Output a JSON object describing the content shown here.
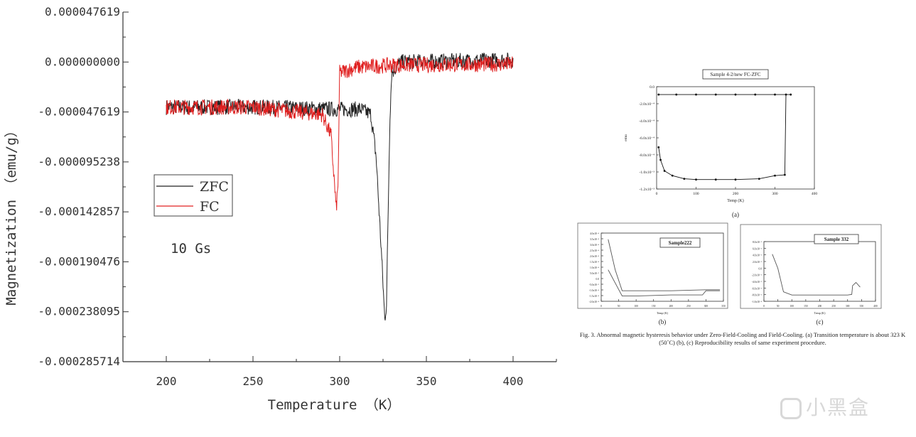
{
  "chart_data": [
    {
      "type": "line",
      "xlabel": "Temperature （K）",
      "ylabel": "Magnetization （emu/g）",
      "xlim": [
        175,
        425
      ],
      "ylim": [
        -0.000285714,
        4.7619e-05
      ],
      "x_ticks": [
        "200",
        "250",
        "300",
        "350",
        "400"
      ],
      "y_ticks": [
        "0.000047619",
        "0.000000000",
        "-0.000047619",
        "-0.000095238",
        "-0.000142857",
        "-0.000190476",
        "-0.000238095",
        "-0.000285714"
      ],
      "legend_position": "left-middle",
      "annotation": "10 Gs",
      "series": [
        {
          "name": "ZFC",
          "color": "#222222",
          "noise": 7.5e-06,
          "points": [
            [
              200,
              -4.3e-05
            ],
            [
              250,
              -4.3e-05
            ],
            [
              300,
              -4.5e-05
            ],
            [
              312,
              -4.5e-05
            ],
            [
              318,
              -5e-05
            ],
            [
              321,
              -9e-05
            ],
            [
              324,
              -0.00018
            ],
            [
              326,
              -0.000245
            ],
            [
              327,
              -0.00023
            ],
            [
              329,
              -5e-05
            ],
            [
              330,
              -1e-05
            ],
            [
              335,
              0.0
            ],
            [
              400,
              2e-06
            ]
          ]
        },
        {
          "name": "FC",
          "color": "#e02020",
          "noise": 7.5e-06,
          "points": [
            [
              200,
              -4.3e-05
            ],
            [
              250,
              -4.3e-05
            ],
            [
              290,
              -5e-05
            ],
            [
              295,
              -7e-05
            ],
            [
              298,
              -0.00014
            ],
            [
              299,
              -0.00012
            ],
            [
              300,
              -1e-05
            ],
            [
              310,
              -5e-06
            ],
            [
              330,
              -3e-06
            ],
            [
              400,
              -2e-06
            ]
          ]
        }
      ]
    },
    {
      "type": "line",
      "title": "Sample 4-2/new FC-ZFC",
      "xlabel": "Temp (K)",
      "ylabel": "emu",
      "xlim": [
        0,
        400
      ],
      "ylim": [
        -0.0012,
        0.0001
      ],
      "x_ticks": [
        "0",
        "100",
        "200",
        "300",
        "400"
      ],
      "y_ticks": [
        "0.0",
        "-2.0x10⁻⁴",
        "-4.0x10⁻⁴",
        "-6.0x10⁻⁴",
        "-8.0x10⁻⁴",
        "-1.0x10⁻³",
        "-1.2x10⁻³"
      ],
      "sublabel": "(a)",
      "series": [
        {
          "color": "#111111",
          "points": [
            [
              5,
              0.0
            ],
            [
              50,
              0.0
            ],
            [
              100,
              0.0
            ],
            [
              150,
              0.0
            ],
            [
              200,
              0.0
            ],
            [
              250,
              0.0
            ],
            [
              300,
              0.0
            ],
            [
              340,
              0.0
            ]
          ]
        },
        {
          "color": "#111111",
          "points": [
            [
              5,
              -0.00067
            ],
            [
              10,
              -0.00083
            ],
            [
              20,
              -0.00097
            ],
            [
              40,
              -0.00103
            ],
            [
              70,
              -0.00107
            ],
            [
              100,
              -0.00108
            ],
            [
              150,
              -0.00108
            ],
            [
              200,
              -0.00108
            ],
            [
              260,
              -0.00107
            ],
            [
              300,
              -0.00103
            ],
            [
              325,
              -0.00102
            ],
            [
              328,
              0.0
            ]
          ]
        }
      ]
    },
    {
      "type": "line",
      "title": "Sample222",
      "xlabel": "Temp (K)",
      "sublabel": "(b)",
      "xlim": [
        0,
        350
      ],
      "x_ticks": [
        "0",
        "50",
        "100",
        "150",
        "200",
        "250",
        "300",
        "350"
      ],
      "y_ticks": [
        "4.0x10⁻⁴",
        "3.5x10⁻⁴",
        "3.0x10⁻⁴",
        "2.5x10⁻⁴",
        "2.0x10⁻⁴",
        "1.5x10⁻⁴",
        "1.0x10⁻⁴",
        "5.0x10⁻⁵",
        "0.0",
        "-5.0x10⁻⁵",
        "-1.0x10⁻⁴",
        "-1.5x10⁻⁴",
        "-2.0x10⁻⁴"
      ],
      "ylim": [
        -0.0002,
        0.00045
      ],
      "series": [
        {
          "color": "#555555",
          "points": [
            [
              20,
              0.00039
            ],
            [
              40,
              0.0001
            ],
            [
              60,
              -0.0001
            ],
            [
              100,
              -0.0001
            ],
            [
              200,
              -0.0001
            ],
            [
              300,
              -9e-05
            ],
            [
              340,
              -9e-05
            ]
          ]
        },
        {
          "color": "#555555",
          "points": [
            [
              20,
              0.0001
            ],
            [
              60,
              -0.00015
            ],
            [
              100,
              -0.00015
            ],
            [
              200,
              -0.00014
            ],
            [
              290,
              -0.00014
            ],
            [
              300,
              -0.0001
            ],
            [
              340,
              -0.0001
            ]
          ]
        }
      ]
    },
    {
      "type": "line",
      "title": "Sample 332",
      "xlabel": "Temp (K)",
      "sublabel": "(c)",
      "xlim": [
        0,
        400
      ],
      "x_ticks": [
        "0",
        "50",
        "100",
        "150",
        "200",
        "250",
        "300",
        "350",
        "400"
      ],
      "y_ticks": [
        "8.0x10⁻⁵",
        "6.0x10⁻⁵",
        "4.0x10⁻⁵",
        "2.0x10⁻⁵",
        "0.0",
        "-2.0x10⁻⁵",
        "-4.0x10⁻⁵",
        "-6.0x10⁻⁵",
        "-8.0x10⁻⁵",
        "-1.0x10⁻⁴"
      ],
      "ylim": [
        -0.0001,
        9e-05
      ],
      "series": [
        {
          "color": "#555555",
          "points": [
            [
              30,
              5e-05
            ],
            [
              50,
              5e-06
            ],
            [
              70,
              -7e-05
            ],
            [
              100,
              -8e-05
            ],
            [
              200,
              -8e-05
            ],
            [
              300,
              -8e-05
            ],
            [
              315,
              -7.8e-05
            ],
            [
              318,
              -5e-05
            ],
            [
              330,
              -4e-05
            ],
            [
              345,
              -5.5e-05
            ]
          ]
        }
      ]
    }
  ],
  "caption": "Fig. 3.  Abnormal magnetic hysteresis behavior under Zero-Field-Cooling and Field-Cooling. (a) Transition temperature is about 323 K (50˚C) (b), (c) Reproducibility results of same experiment procedure.",
  "watermark": "小黑盒"
}
